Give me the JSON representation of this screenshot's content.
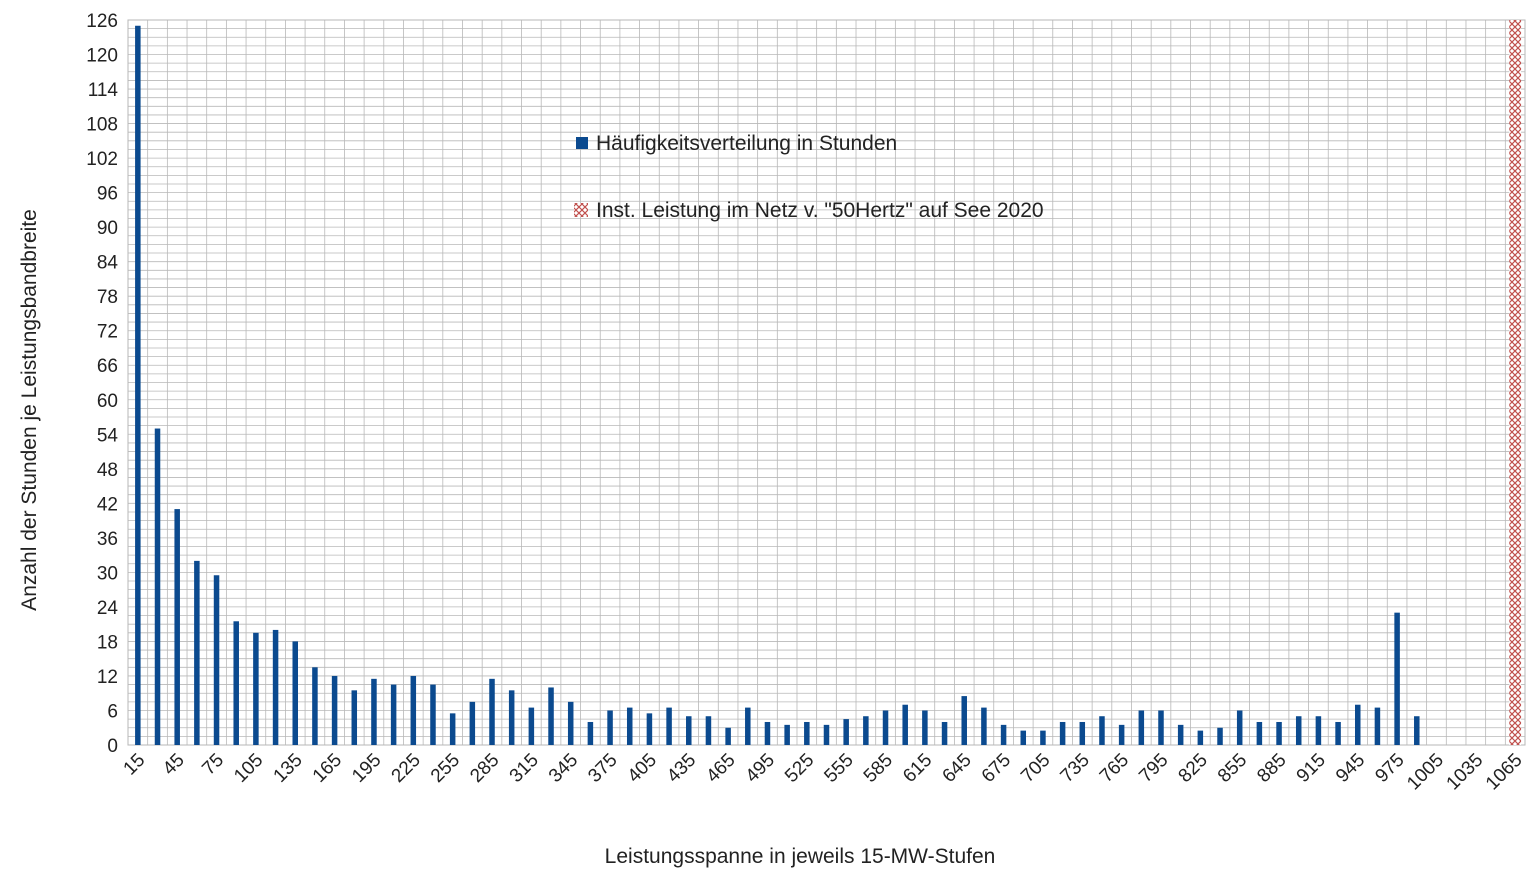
{
  "chart_data": {
    "type": "bar",
    "title": "",
    "xlabel": "Leistungsspanne in jeweils 15-MW-Stufen",
    "ylabel": "Anzahl der Stunden je Leistungsbandbreite",
    "ylim": [
      0,
      126
    ],
    "y_ticks": [
      0,
      6,
      12,
      18,
      24,
      30,
      36,
      42,
      48,
      54,
      60,
      66,
      72,
      78,
      84,
      90,
      96,
      102,
      108,
      114,
      120,
      126
    ],
    "grid": true,
    "legend_position": "top-center",
    "x_tick_labels": [
      "15",
      "45",
      "75",
      "105",
      "135",
      "165",
      "195",
      "225",
      "255",
      "285",
      "315",
      "345",
      "375",
      "405",
      "435",
      "465",
      "495",
      "525",
      "555",
      "585",
      "615",
      "645",
      "675",
      "705",
      "735",
      "765",
      "795",
      "825",
      "855",
      "885",
      "915",
      "945",
      "975",
      "1005",
      "1035",
      "1065"
    ],
    "categories": [
      15,
      30,
      45,
      60,
      75,
      90,
      105,
      120,
      135,
      150,
      165,
      180,
      195,
      210,
      225,
      240,
      255,
      270,
      285,
      300,
      315,
      330,
      345,
      360,
      375,
      390,
      405,
      420,
      435,
      450,
      465,
      480,
      495,
      510,
      525,
      540,
      555,
      570,
      585,
      600,
      615,
      630,
      645,
      660,
      675,
      690,
      705,
      720,
      735,
      750,
      765,
      780,
      795,
      810,
      825,
      840,
      855,
      870,
      885,
      900,
      915,
      930,
      945,
      960,
      975,
      990,
      1005,
      1020,
      1035,
      1050,
      1065
    ],
    "series": [
      {
        "name": "Häufigkeitsverteilung in Stunden",
        "type": "bar",
        "color": "#0b4a8f",
        "values": [
          125,
          55,
          41,
          32,
          29.5,
          21.5,
          19.5,
          20,
          18,
          13.5,
          12,
          9.5,
          11.5,
          10.5,
          12,
          10.5,
          5.5,
          7.5,
          11.5,
          9.5,
          6.5,
          10,
          7.5,
          4,
          6,
          6.5,
          5.5,
          6.5,
          5,
          5,
          3,
          6.5,
          4,
          3.5,
          4,
          3.5,
          4.5,
          5,
          6,
          7,
          6,
          4,
          8.5,
          6.5,
          3.5,
          2.5,
          2.5,
          4,
          4,
          5,
          3.5,
          6,
          6,
          3.5,
          2.5,
          3,
          6,
          4,
          4,
          5,
          5,
          4,
          7,
          6.5,
          23,
          5,
          0,
          0,
          0,
          0,
          0
        ]
      },
      {
        "name": "Inst. Leistung im Netz v. \"50Hertz\" auf See 2020",
        "type": "bar",
        "pattern": "cross-hatch",
        "color": "#c0504d",
        "values": [
          0,
          0,
          0,
          0,
          0,
          0,
          0,
          0,
          0,
          0,
          0,
          0,
          0,
          0,
          0,
          0,
          0,
          0,
          0,
          0,
          0,
          0,
          0,
          0,
          0,
          0,
          0,
          0,
          0,
          0,
          0,
          0,
          0,
          0,
          0,
          0,
          0,
          0,
          0,
          0,
          0,
          0,
          0,
          0,
          0,
          0,
          0,
          0,
          0,
          0,
          0,
          0,
          0,
          0,
          0,
          0,
          0,
          0,
          0,
          0,
          0,
          0,
          0,
          0,
          0,
          0,
          0,
          0,
          0,
          0,
          126
        ]
      }
    ]
  }
}
